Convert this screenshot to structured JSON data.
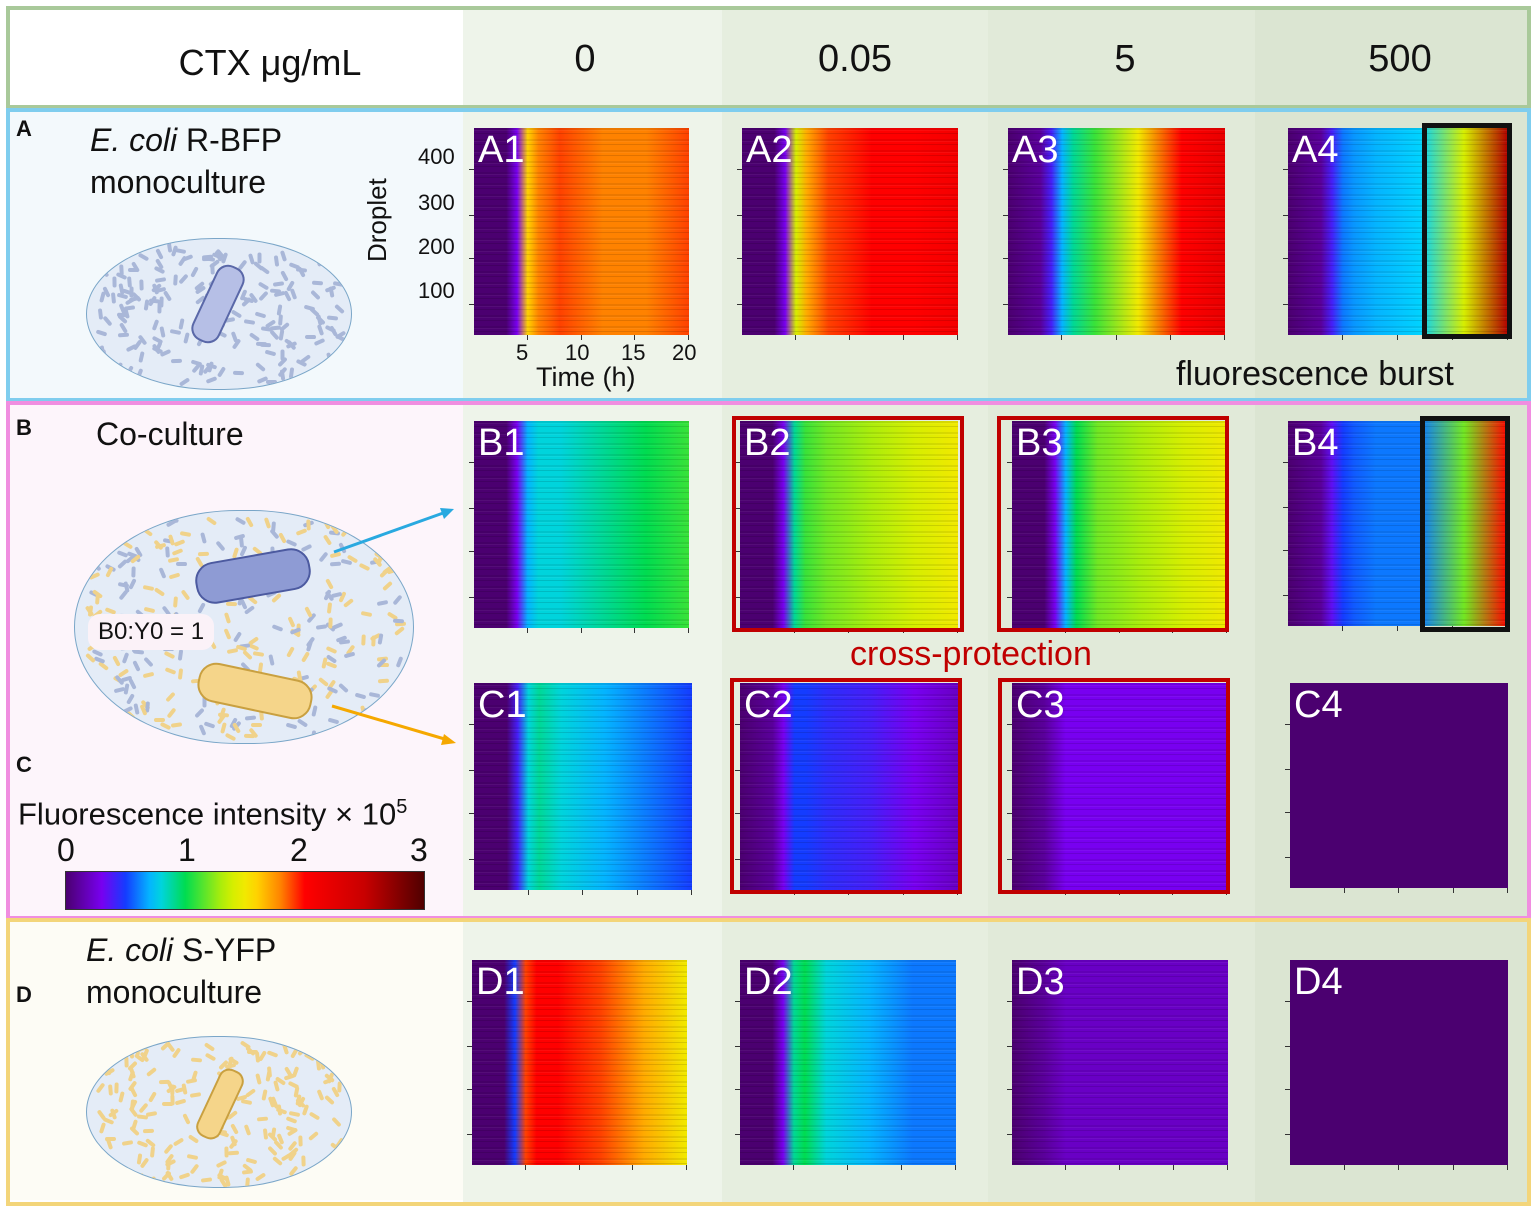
{
  "header": {
    "ctx_label": "CTX μg/mL",
    "concentrations": [
      "0",
      "0.05",
      "5",
      "500"
    ]
  },
  "sections": {
    "A": {
      "letter": "A",
      "title_italic": "E. coli",
      "title_rest": " R-BFP",
      "title_line2": "monoculture"
    },
    "B": {
      "letter": "B",
      "title": "Co-culture",
      "ratio": "B0:Y0 = 1"
    },
    "C": {
      "letter": "C"
    },
    "D": {
      "letter": "D",
      "title_italic": "E. coli",
      "title_rest": " S-YFP",
      "title_line2": "monoculture"
    }
  },
  "annotations": {
    "burst": "fluorescence burst",
    "cross": "cross-protection"
  },
  "colors": {
    "header_border": "#a9c99a",
    "A_border": "#7fcdee",
    "BC_border": "#f08ee0",
    "D_border": "#f3d57a",
    "red_box": "#c00000",
    "arrow_blue": "#29a9e0",
    "arrow_orange": "#f5a800"
  },
  "chart_data": {
    "type": "heatmap",
    "xlabel": "Time (h)",
    "ylabel": "Droplet",
    "xticks": [
      "5",
      "10",
      "15",
      "20"
    ],
    "yticks": [
      "100",
      "200",
      "300",
      "400"
    ],
    "xlim": [
      0,
      20
    ],
    "ylim": [
      0,
      460
    ],
    "colorbar": {
      "label": "Fluorescence intensity × 10",
      "exponent": "5",
      "ticks": [
        "0",
        "1",
        "2",
        "3"
      ],
      "range": [
        0,
        3
      ]
    },
    "time_points": [
      0,
      3,
      4,
      5,
      6,
      8,
      12,
      16,
      20
    ],
    "panels": [
      {
        "id": "A1",
        "profile": [
          0,
          0,
          0.3,
          1.6,
          1.8,
          1.9,
          1.8,
          1.8,
          1.9
        ]
      },
      {
        "id": "A2",
        "profile": [
          0,
          0,
          0.3,
          1.4,
          1.7,
          1.9,
          2.0,
          2.0,
          2.1
        ]
      },
      {
        "id": "A3",
        "profile": [
          0,
          0.1,
          0.4,
          0.7,
          0.9,
          1.1,
          1.5,
          2.0,
          2.2
        ]
      },
      {
        "id": "A4",
        "profile": [
          0,
          0.1,
          0.4,
          0.6,
          0.65,
          0.7,
          0.75,
          1.4,
          2.6
        ]
      },
      {
        "id": "B1",
        "profile": [
          0,
          0,
          0.3,
          0.7,
          0.8,
          0.8,
          0.9,
          1.0,
          1.1
        ]
      },
      {
        "id": "B2",
        "profile": [
          0,
          0,
          0.3,
          0.9,
          1.1,
          1.2,
          1.3,
          1.4,
          1.5
        ]
      },
      {
        "id": "B3",
        "profile": [
          0,
          0,
          0.3,
          0.7,
          1.0,
          1.2,
          1.3,
          1.4,
          1.5
        ]
      },
      {
        "id": "B4",
        "profile": [
          0,
          0.1,
          0.35,
          0.5,
          0.55,
          0.6,
          0.6,
          1.2,
          2.0
        ]
      },
      {
        "id": "C1",
        "profile": [
          0,
          0,
          0.4,
          0.8,
          0.9,
          0.8,
          0.7,
          0.6,
          0.5
        ]
      },
      {
        "id": "C2",
        "profile": [
          0,
          0.1,
          0.3,
          0.5,
          0.5,
          0.45,
          0.4,
          0.3,
          0.2
        ]
      },
      {
        "id": "C3",
        "profile": [
          0,
          0.1,
          0.2,
          0.3,
          0.3,
          0.3,
          0.3,
          0.3,
          0.3
        ]
      },
      {
        "id": "C4",
        "profile": [
          0,
          0,
          0,
          0,
          0,
          0,
          0,
          0,
          0
        ]
      },
      {
        "id": "D1",
        "profile": [
          0,
          0,
          0.5,
          1.9,
          2.0,
          2.0,
          1.9,
          1.7,
          1.5
        ]
      },
      {
        "id": "D2",
        "profile": [
          0,
          0,
          0.3,
          0.9,
          1.0,
          0.8,
          0.7,
          0.6,
          0.6
        ]
      },
      {
        "id": "D3",
        "profile": [
          0,
          0.1,
          0.15,
          0.2,
          0.2,
          0.2,
          0.2,
          0.2,
          0.2
        ]
      },
      {
        "id": "D4",
        "profile": [
          0,
          0,
          0,
          0,
          0,
          0,
          0,
          0,
          0
        ]
      }
    ]
  }
}
